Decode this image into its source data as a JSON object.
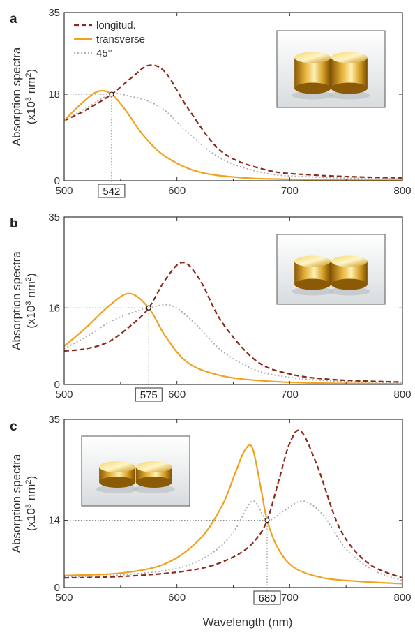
{
  "figure": {
    "xlabel": "Wavelength  (nm)",
    "ylabel_line1": "Absorption spectra",
    "ylabel_line2": "(x10",
    "ylabel_sup1": "3",
    "ylabel_mid": " nm",
    "ylabel_sup2": "2",
    "ylabel_end": ")"
  },
  "legend": [
    {
      "name": "longitud.",
      "color": "#8b2a1a",
      "dash": "dashed"
    },
    {
      "name": "transverse",
      "color": "#f0a21e",
      "dash": "solid"
    },
    {
      "name": "45°",
      "color": "#aaaaaa",
      "dash": "dotted"
    }
  ],
  "chart_data": [
    {
      "type": "line",
      "panel": "a",
      "xlim": [
        500,
        800
      ],
      "ylim": [
        0,
        35
      ],
      "yticks": [
        "0",
        "18",
        "35"
      ],
      "xticks": [
        "500",
        "600",
        "700",
        "800"
      ],
      "crossing": {
        "x": 542,
        "y": 18,
        "label": "542"
      },
      "inset": "right",
      "series": [
        {
          "name": "longitud.",
          "color": "#8b2a1a",
          "style": "dashed",
          "x": [
            500,
            520,
            542,
            560,
            575,
            590,
            610,
            640,
            680,
            720,
            760,
            800
          ],
          "y": [
            12.5,
            14.8,
            18,
            21.5,
            24,
            22.5,
            15,
            6,
            2.2,
            1.2,
            0.8,
            0.6
          ]
        },
        {
          "name": "transverse",
          "color": "#f0a21e",
          "style": "solid",
          "x": [
            500,
            515,
            530,
            542,
            555,
            570,
            590,
            620,
            660,
            700,
            750,
            800
          ],
          "y": [
            12.5,
            16,
            18.6,
            18,
            14.5,
            9.5,
            5,
            1.8,
            0.6,
            0.3,
            0.15,
            0.1
          ]
        },
        {
          "name": "45°",
          "color": "#aaaaaa",
          "style": "dotted",
          "x": [
            500,
            520,
            542,
            560,
            575,
            590,
            610,
            640,
            680,
            720,
            760,
            800
          ],
          "y": [
            12.5,
            15.2,
            18,
            17.5,
            16.5,
            14.5,
            10,
            4.5,
            1.5,
            0.8,
            0.5,
            0.4
          ]
        }
      ]
    },
    {
      "type": "line",
      "panel": "b",
      "xlim": [
        500,
        800
      ],
      "ylim": [
        0,
        35
      ],
      "yticks": [
        "0",
        "16",
        "35"
      ],
      "xticks": [
        "500",
        "600",
        "700",
        "800"
      ],
      "crossing": {
        "x": 575,
        "y": 16,
        "label": "575"
      },
      "inset": "right",
      "series": [
        {
          "name": "longitud.",
          "color": "#8b2a1a",
          "style": "dashed",
          "x": [
            500,
            520,
            540,
            560,
            575,
            590,
            605,
            620,
            640,
            670,
            700,
            740,
            800
          ],
          "y": [
            7,
            7.5,
            9,
            12.5,
            16,
            22,
            25.5,
            22,
            13,
            5,
            2.2,
            1,
            0.5
          ]
        },
        {
          "name": "transverse",
          "color": "#f0a21e",
          "style": "solid",
          "x": [
            500,
            520,
            540,
            558,
            575,
            590,
            610,
            640,
            680,
            720,
            760,
            800
          ],
          "y": [
            8,
            12,
            16.5,
            19,
            16,
            10,
            4.5,
            1.8,
            0.7,
            0.3,
            0.2,
            0.1
          ]
        },
        {
          "name": "45°",
          "color": "#aaaaaa",
          "style": "dotted",
          "x": [
            500,
            520,
            540,
            560,
            575,
            595,
            615,
            640,
            670,
            700,
            740,
            800
          ],
          "y": [
            7.5,
            10,
            13,
            15,
            16,
            16.5,
            13,
            7,
            3,
            1.5,
            0.7,
            0.3
          ]
        }
      ]
    },
    {
      "type": "line",
      "panel": "c",
      "xlim": [
        500,
        800
      ],
      "ylim": [
        0,
        35
      ],
      "yticks": [
        "0",
        "14",
        "35"
      ],
      "xticks": [
        "500",
        "600",
        "700",
        "800"
      ],
      "crossing": {
        "x": 680,
        "y": 14,
        "label": "680"
      },
      "inset": "left",
      "series": [
        {
          "name": "longitud.",
          "color": "#8b2a1a",
          "style": "dashed",
          "x": [
            500,
            550,
            600,
            630,
            655,
            670,
            680,
            690,
            700,
            710,
            725,
            745,
            770,
            800
          ],
          "y": [
            2,
            2.3,
            3.2,
            4.5,
            7,
            10,
            14,
            22,
            30,
            32.5,
            25,
            12,
            5,
            2
          ]
        },
        {
          "name": "transverse",
          "color": "#f0a21e",
          "style": "solid",
          "x": [
            500,
            550,
            590,
            620,
            640,
            652,
            660,
            667,
            675,
            680,
            690,
            705,
            730,
            760,
            800
          ],
          "y": [
            2.5,
            3,
            5,
            10,
            17,
            24,
            28.5,
            29,
            20,
            14,
            8,
            4,
            2,
            1.3,
            0.8
          ]
        },
        {
          "name": "45°",
          "color": "#aaaaaa",
          "style": "dotted",
          "x": [
            500,
            550,
            600,
            630,
            650,
            667,
            680,
            695,
            712,
            730,
            750,
            775,
            800
          ],
          "y": [
            2.2,
            2.6,
            4,
            7,
            11.5,
            18,
            14,
            16,
            18,
            15,
            8,
            3.5,
            1.5
          ]
        }
      ]
    }
  ]
}
